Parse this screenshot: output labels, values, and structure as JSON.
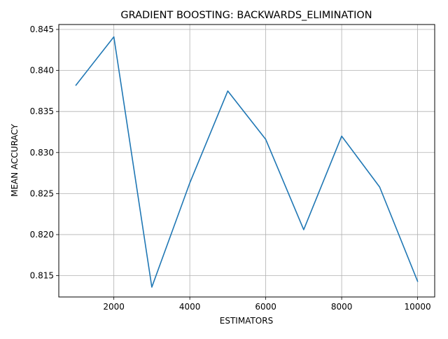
{
  "chart_data": {
    "type": "line",
    "title": "GRADIENT BOOSTING: BACKWARDS_ELIMINATION",
    "xlabel": "ESTIMATORS",
    "ylabel": "MEAN ACCURACY",
    "xlim": [
      550,
      10450
    ],
    "ylim": [
      0.8124,
      0.8456
    ],
    "xticks": [
      2000,
      4000,
      6000,
      8000,
      10000
    ],
    "xtick_labels": [
      "2000",
      "4000",
      "6000",
      "8000",
      "10000"
    ],
    "yticks": [
      0.815,
      0.82,
      0.825,
      0.83,
      0.835,
      0.84,
      0.845
    ],
    "ytick_labels": [
      "0.815",
      "0.820",
      "0.825",
      "0.830",
      "0.835",
      "0.840",
      "0.845"
    ],
    "grid": true,
    "series": [
      {
        "color": "#1f77b4",
        "x": [
          1000,
          2000,
          3000,
          4000,
          5000,
          6000,
          7000,
          8000,
          9000,
          10000
        ],
        "y": [
          0.8382,
          0.8441,
          0.8136,
          0.8263,
          0.8375,
          0.8316,
          0.8206,
          0.832,
          0.8258,
          0.8143
        ]
      }
    ]
  }
}
